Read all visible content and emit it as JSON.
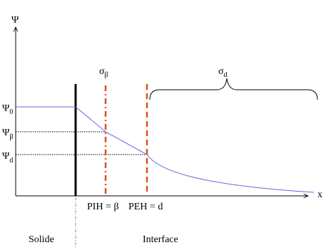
{
  "axes": {
    "y_label": "Ψ",
    "x_label": "x"
  },
  "levels": [
    {
      "symbol": "Ψ",
      "sub": "0"
    },
    {
      "symbol": "Ψ",
      "sub": "β"
    },
    {
      "symbol": "Ψ",
      "sub": "d"
    }
  ],
  "charges": [
    {
      "symbol": "σ",
      "sub": "β"
    },
    {
      "symbol": "σ",
      "sub": "d"
    }
  ],
  "planes": [
    "PIH = β",
    "PEH = d"
  ],
  "regions": [
    "Solide",
    "Interface"
  ]
}
